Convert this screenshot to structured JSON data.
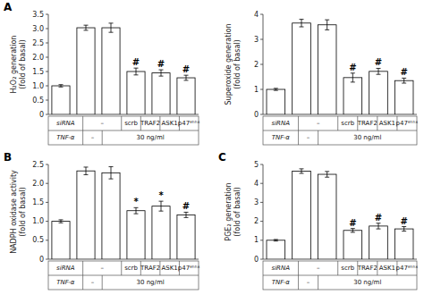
{
  "chart_data": [
    {
      "type": "bar",
      "title": "A",
      "y_label": "H₂O₂ generation\n(fold of basal)",
      "categories": [
        null,
        null,
        null,
        null,
        null,
        null
      ],
      "values": [
        1.0,
        3.03,
        3.03,
        1.5,
        1.45,
        1.28
      ],
      "errors": [
        0.04,
        0.09,
        0.16,
        0.12,
        0.11,
        0.09
      ],
      "color": "white",
      "ylim": [
        0,
        3.5
      ],
      "yticks": [
        0,
        0.5,
        {
          "value": 1.0,
          "label": "1.0"
        },
        1.5,
        {
          "value": 2.0,
          "label": "2.0"
        },
        2.5,
        {
          "value": 3.0,
          "label": "3.0"
        },
        3.5
      ],
      "tick_labels": "y",
      "annotations": {
        "significance": [
          null,
          null,
          null,
          "#",
          "#",
          "#"
        ],
        "table": [
          [
            "siRNA",
            "–",
            "scrb",
            "TRAF2",
            "ASK1",
            "p47ᵄʰʰˣ"
          ],
          [
            "TNF-α",
            "–",
            "30 ng/ml"
          ]
        ]
      }
    },
    {
      "type": "bar",
      "y_label": "Superoxide generation\n(fold of basal)",
      "categories": [
        null,
        null,
        null,
        null,
        null,
        null
      ],
      "values": [
        1.0,
        3.65,
        3.58,
        1.47,
        1.72,
        1.35
      ],
      "errors": [
        0.04,
        0.15,
        0.2,
        0.18,
        0.12,
        0.1
      ],
      "color": "white",
      "ylim": [
        0,
        4
      ],
      "yticks": [
        0,
        1,
        2,
        3,
        4
      ],
      "tick_labels": "y",
      "annotations": {
        "significance": [
          null,
          null,
          null,
          "#",
          "#",
          "#"
        ],
        "table": [
          [
            "siRNA",
            "–",
            "scrb",
            "TRAF2",
            "ASK1",
            "p47ᵄʰʰˣ"
          ],
          [
            "TNF-α",
            "–",
            "30 ng/ml"
          ]
        ]
      }
    },
    {
      "type": "bar",
      "title": "B",
      "y_label": "NADPH oxidase activity\n(fold of basal)",
      "categories": [
        null,
        null,
        null,
        null,
        null,
        null
      ],
      "values": [
        1.0,
        2.33,
        2.28,
        1.28,
        1.4,
        1.17
      ],
      "errors": [
        0.04,
        0.1,
        0.16,
        0.08,
        0.13,
        0.07
      ],
      "color": "white",
      "ylim": [
        0,
        2.5
      ],
      "yticks": [
        0,
        0.5,
        {
          "value": 1.0,
          "label": "1.0"
        },
        1.5,
        {
          "value": 2.0,
          "label": "2.0"
        },
        2.5
      ],
      "tick_labels": "y",
      "annotations": {
        "significance": [
          null,
          null,
          null,
          "*",
          "*",
          "#"
        ],
        "table": [
          [
            "siRNA",
            "–",
            "scrb",
            "TRAF2",
            "ASK1",
            "p47ᵄʰʰˣ"
          ],
          [
            "TNF-α",
            "–",
            "30 ng/ml"
          ]
        ]
      }
    },
    {
      "type": "bar",
      "title": "C",
      "y_label": "PGE₂ generation\n(fold of basal)",
      "categories": [
        null,
        null,
        null,
        null,
        null,
        null
      ],
      "values": [
        1.0,
        4.65,
        4.48,
        1.52,
        1.75,
        1.6
      ],
      "errors": [
        0.04,
        0.12,
        0.15,
        0.1,
        0.15,
        0.12
      ],
      "color": "white",
      "ylim": [
        0,
        5
      ],
      "yticks": [
        0,
        1,
        2,
        3,
        4,
        5
      ],
      "tick_labels": "y",
      "annotations": {
        "significance": [
          null,
          null,
          null,
          "#",
          "#",
          "#"
        ],
        "table": [
          [
            "siRNA",
            "–",
            "scrb",
            "TRAF2",
            "ASK1",
            "p47ᵄʰʰˣ"
          ],
          [
            "TNF-α",
            "–",
            "30 ng/ml"
          ]
        ]
      }
    }
  ]
}
